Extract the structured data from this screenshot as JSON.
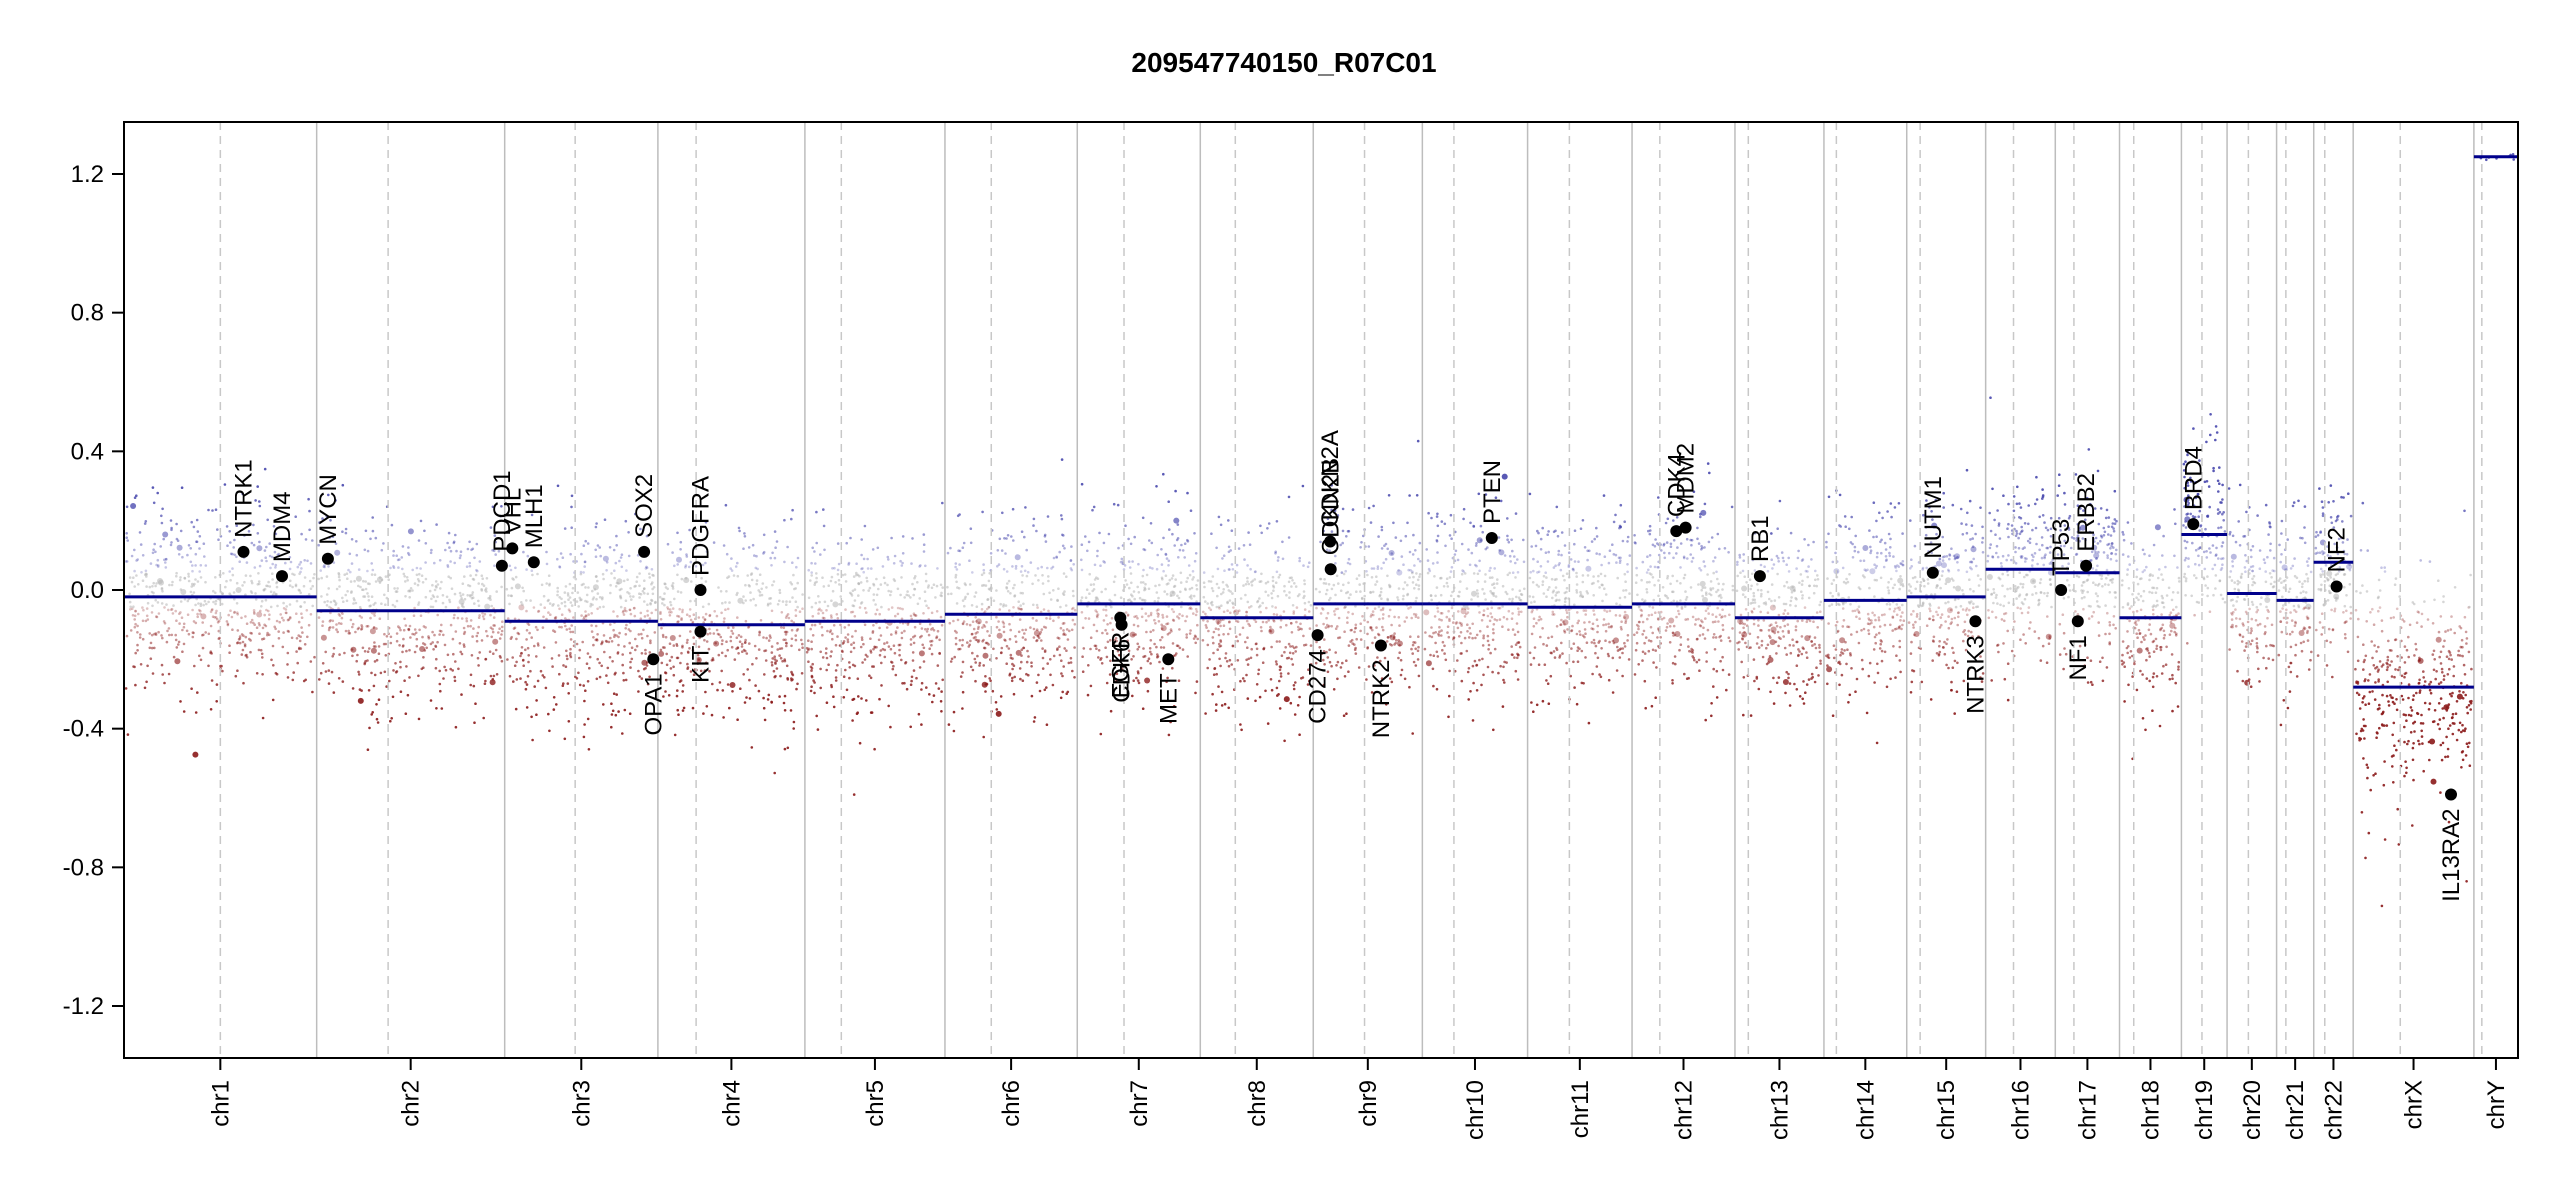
{
  "chart_data": {
    "type": "scatter",
    "title": "209547740150_R07C01",
    "xlabel": "",
    "ylabel": "",
    "ylim": [
      -1.35,
      1.35
    ],
    "y_ticks": [
      -1.2,
      -0.8,
      -0.4,
      0.0,
      0.4,
      0.8,
      1.2
    ],
    "y_tick_labels": [
      "-1.2",
      "-0.8",
      "-0.4",
      "0.0",
      "0.4",
      "0.8",
      "1.2"
    ],
    "chromosomes": [
      {
        "name": "chr1",
        "size": 249,
        "centromere": 0.5
      },
      {
        "name": "chr2",
        "size": 243,
        "centromere": 0.38
      },
      {
        "name": "chr3",
        "size": 198,
        "centromere": 0.46
      },
      {
        "name": "chr4",
        "size": 190,
        "centromere": 0.26
      },
      {
        "name": "chr5",
        "size": 181,
        "centromere": 0.26
      },
      {
        "name": "chr6",
        "size": 171,
        "centromere": 0.35
      },
      {
        "name": "chr7",
        "size": 159,
        "centromere": 0.38
      },
      {
        "name": "chr8",
        "size": 146,
        "centromere": 0.31
      },
      {
        "name": "chr9",
        "size": 141,
        "centromere": 0.47
      },
      {
        "name": "chr10",
        "size": 136,
        "centromere": 0.3
      },
      {
        "name": "chr11",
        "size": 135,
        "centromere": 0.4
      },
      {
        "name": "chr12",
        "size": 133,
        "centromere": 0.27
      },
      {
        "name": "chr13",
        "size": 115,
        "centromere": 0.15
      },
      {
        "name": "chr14",
        "size": 107,
        "centromere": 0.15
      },
      {
        "name": "chr15",
        "size": 102,
        "centromere": 0.17
      },
      {
        "name": "chr16",
        "size": 90,
        "centromere": 0.4
      },
      {
        "name": "chr17",
        "size": 83,
        "centromere": 0.29
      },
      {
        "name": "chr18",
        "size": 80,
        "centromere": 0.23
      },
      {
        "name": "chr19",
        "size": 59,
        "centromere": 0.45
      },
      {
        "name": "chr20",
        "size": 64,
        "centromere": 0.43
      },
      {
        "name": "chr21",
        "size": 48,
        "centromere": 0.25
      },
      {
        "name": "chr22",
        "size": 51,
        "centromere": 0.28
      },
      {
        "name": "chrX",
        "size": 156,
        "centromere": 0.39
      },
      {
        "name": "chrY",
        "size": 57,
        "centromere": 0.18
      }
    ],
    "segments": [
      {
        "chr": "chr1",
        "value": -0.02
      },
      {
        "chr": "chr2",
        "value": -0.06
      },
      {
        "chr": "chr3",
        "value": -0.09
      },
      {
        "chr": "chr4",
        "value": -0.1
      },
      {
        "chr": "chr5",
        "value": -0.09
      },
      {
        "chr": "chr6",
        "value": -0.07
      },
      {
        "chr": "chr7",
        "value": -0.04
      },
      {
        "chr": "chr8",
        "value": -0.08
      },
      {
        "chr": "chr9",
        "value": -0.04
      },
      {
        "chr": "chr10",
        "value": -0.04
      },
      {
        "chr": "chr11",
        "value": -0.05
      },
      {
        "chr": "chr12",
        "value": -0.04
      },
      {
        "chr": "chr13",
        "value": -0.08
      },
      {
        "chr": "chr14",
        "value": -0.03
      },
      {
        "chr": "chr15",
        "value": -0.02
      },
      {
        "chr": "chr16",
        "value": 0.06
      },
      {
        "chr": "chr17",
        "value": 0.05
      },
      {
        "chr": "chr18",
        "value": -0.08
      },
      {
        "chr": "chr19",
        "value": 0.16
      },
      {
        "chr": "chr20",
        "value": -0.01
      },
      {
        "chr": "chr21",
        "value": -0.03
      },
      {
        "chr": "chr22",
        "value": 0.08
      },
      {
        "chr": "chrX",
        "value": -0.28
      },
      {
        "chr": "chrY",
        "value": 1.25
      }
    ],
    "genes": [
      {
        "name": "NTRK1",
        "chr": "chr1",
        "pos": 0.62,
        "value": 0.11
      },
      {
        "name": "MDM4",
        "chr": "chr1",
        "pos": 0.82,
        "value": 0.04
      },
      {
        "name": "MYCN",
        "chr": "chr2",
        "pos": 0.06,
        "value": 0.09
      },
      {
        "name": "PDCD1",
        "chr": "chr2",
        "pos": 0.985,
        "value": 0.07
      },
      {
        "name": "VHL",
        "chr": "chr3",
        "pos": 0.05,
        "value": 0.12
      },
      {
        "name": "MLH1",
        "chr": "chr3",
        "pos": 0.19,
        "value": 0.08
      },
      {
        "name": "SOX2",
        "chr": "chr3",
        "pos": 0.91,
        "value": 0.11
      },
      {
        "name": "OPA1",
        "chr": "chr3",
        "pos": 0.97,
        "value": -0.2
      },
      {
        "name": "PDGFRA",
        "chr": "chr4",
        "pos": 0.29,
        "value": 0.0
      },
      {
        "name": "KIT",
        "chr": "chr4",
        "pos": 0.29,
        "value": -0.12
      },
      {
        "name": "EGFR",
        "chr": "chr7",
        "pos": 0.35,
        "value": -0.08
      },
      {
        "name": "CDK6",
        "chr": "chr7",
        "pos": 0.36,
        "value": -0.1
      },
      {
        "name": "MET",
        "chr": "chr7",
        "pos": 0.74,
        "value": -0.2
      },
      {
        "name": "CD274",
        "chr": "chr9",
        "pos": 0.04,
        "value": -0.13
      },
      {
        "name": "CDKN2A",
        "chr": "chr9",
        "pos": 0.155,
        "value": 0.14
      },
      {
        "name": "CDKN2B",
        "chr": "chr9",
        "pos": 0.16,
        "value": 0.06
      },
      {
        "name": "NTRK2",
        "chr": "chr9",
        "pos": 0.62,
        "value": -0.16
      },
      {
        "name": "PTEN",
        "chr": "chr10",
        "pos": 0.66,
        "value": 0.15
      },
      {
        "name": "CDK4",
        "chr": "chr12",
        "pos": 0.43,
        "value": 0.17
      },
      {
        "name": "MDM2",
        "chr": "chr12",
        "pos": 0.52,
        "value": 0.18
      },
      {
        "name": "RB1",
        "chr": "chr13",
        "pos": 0.28,
        "value": 0.04
      },
      {
        "name": "NUTM1",
        "chr": "chr15",
        "pos": 0.33,
        "value": 0.05
      },
      {
        "name": "NTRK3",
        "chr": "chr15",
        "pos": 0.87,
        "value": -0.09
      },
      {
        "name": "TP53",
        "chr": "chr17",
        "pos": 0.09,
        "value": 0.0
      },
      {
        "name": "NF1",
        "chr": "chr17",
        "pos": 0.35,
        "value": -0.09
      },
      {
        "name": "ERBB2",
        "chr": "chr17",
        "pos": 0.48,
        "value": 0.07
      },
      {
        "name": "BRD4",
        "chr": "chr19",
        "pos": 0.26,
        "value": 0.19
      },
      {
        "name": "NF2",
        "chr": "chr22",
        "pos": 0.58,
        "value": 0.01
      },
      {
        "name": "IL13RA2",
        "chr": "chrX",
        "pos": 0.81,
        "value": -0.59
      }
    ],
    "grid": false,
    "legend": "none",
    "colors": {
      "gain": "#3c3ca8",
      "loss": "#8b1a1a",
      "neutral": "#b4b4b4",
      "segment": "#00008b",
      "boundary": "#bdbdbd",
      "gene_point": "#000000"
    }
  }
}
